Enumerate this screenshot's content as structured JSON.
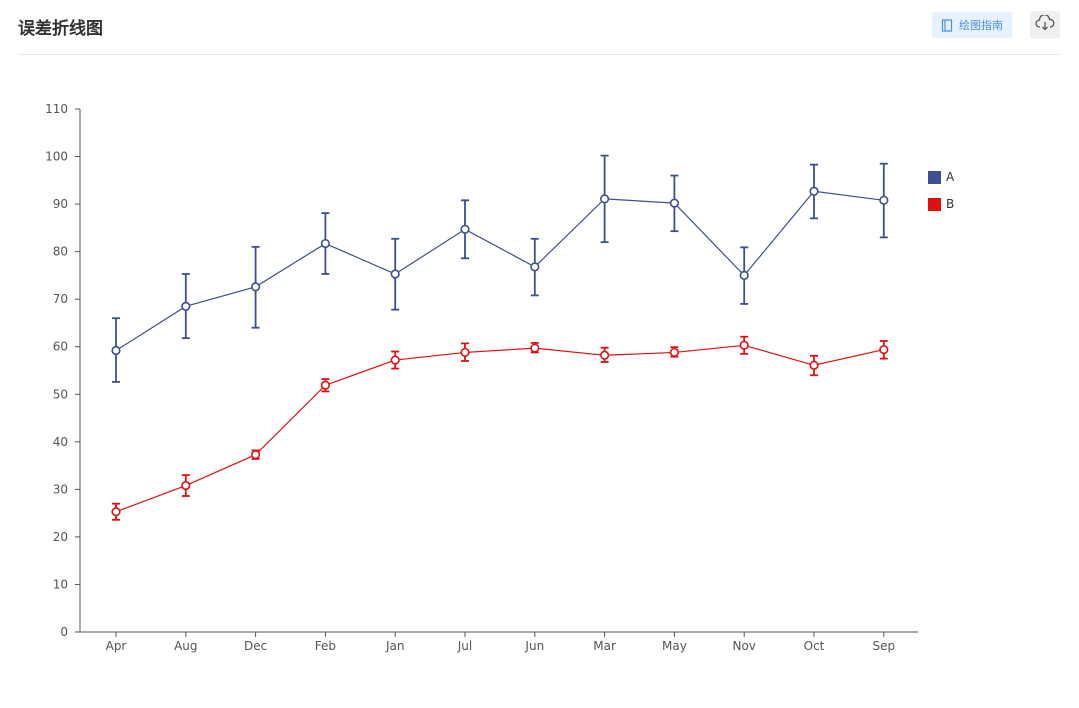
{
  "header": {
    "title": "误差折线图",
    "guide_label": "绘图指南",
    "guide_icon": "book-icon",
    "download_icon": "cloud-download-icon"
  },
  "chart_data": {
    "type": "line",
    "categories": [
      "Apr",
      "Aug",
      "Dec",
      "Feb",
      "Jan",
      "Jul",
      "Jun",
      "Mar",
      "May",
      "Nov",
      "Oct",
      "Sep"
    ],
    "ylim": [
      0,
      110
    ],
    "yticks": [
      0,
      10,
      20,
      30,
      40,
      50,
      60,
      70,
      80,
      90,
      100,
      110
    ],
    "grid": false,
    "legend_position": "right",
    "series": [
      {
        "name": "A",
        "color": "#3d4f8f",
        "values": [
          59.2,
          68.5,
          72.6,
          81.7,
          75.3,
          84.7,
          76.8,
          91.1,
          90.2,
          75.0,
          92.7,
          90.8
        ],
        "error_low": [
          52.6,
          61.8,
          64.0,
          75.3,
          67.8,
          78.6,
          70.8,
          82.0,
          84.3,
          69.0,
          87.0,
          83.0
        ],
        "error_high": [
          66.0,
          75.3,
          81.0,
          88.1,
          82.7,
          90.8,
          82.7,
          100.2,
          96.0,
          80.9,
          98.3,
          98.5
        ]
      },
      {
        "name": "B",
        "color": "#e01010",
        "values": [
          25.3,
          30.8,
          37.3,
          51.9,
          57.2,
          58.8,
          59.7,
          58.2,
          58.8,
          60.3,
          56.1,
          59.4
        ],
        "error_low": [
          23.6,
          28.6,
          36.4,
          50.6,
          55.4,
          57.0,
          58.8,
          56.8,
          57.9,
          58.5,
          54.0,
          57.5
        ],
        "error_high": [
          27.0,
          33.0,
          38.2,
          53.2,
          59.0,
          60.7,
          60.8,
          59.8,
          59.9,
          62.1,
          58.1,
          61.2
        ]
      }
    ]
  }
}
